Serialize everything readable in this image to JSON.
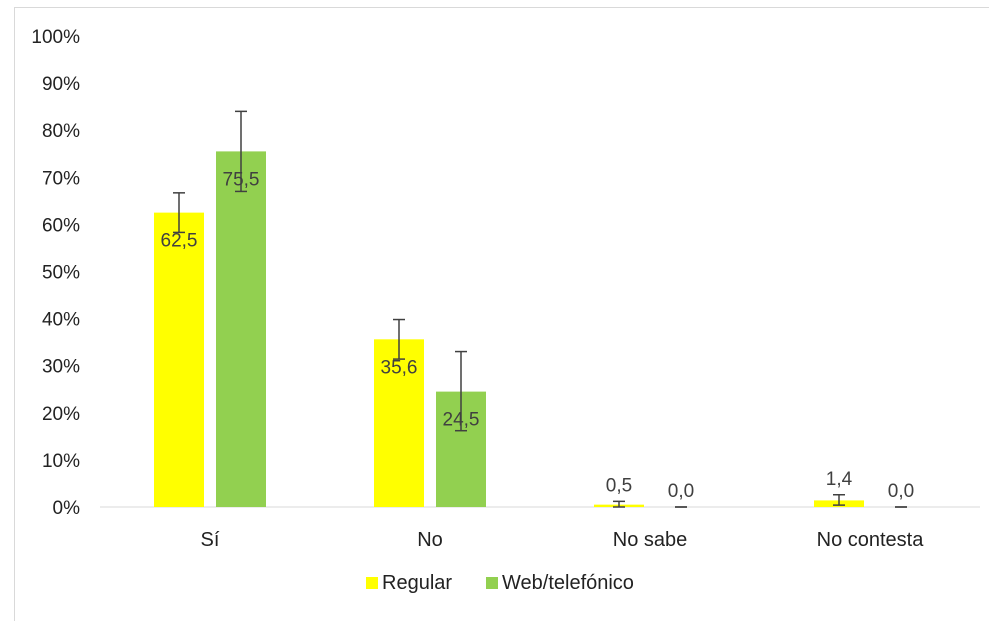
{
  "chart_data": {
    "type": "bar",
    "categories": [
      "Sí",
      "No",
      "No sabe",
      "No contesta"
    ],
    "series": [
      {
        "name": "Regular",
        "values": [
          62.5,
          35.6,
          0.5,
          1.4
        ],
        "data_labels": [
          "62,5",
          "35,6",
          "0,5",
          "1,4"
        ],
        "error_low": [
          58.3,
          31.4,
          0.0,
          0.4
        ],
        "error_high": [
          66.7,
          39.8,
          1.2,
          2.6
        ],
        "color": "#ffff00"
      },
      {
        "name": "Web/telefónico",
        "values": [
          75.5,
          24.5,
          0.0,
          0.0
        ],
        "data_labels": [
          "75,5",
          "24,5",
          "0,0",
          "0,0"
        ],
        "error_low": [
          67.0,
          16.2,
          0.0,
          0.0
        ],
        "error_high": [
          84.0,
          33.0,
          0.0,
          0.0
        ],
        "color": "#92d050"
      }
    ],
    "y_ticks": [
      "0%",
      "10%",
      "20%",
      "30%",
      "40%",
      "50%",
      "60%",
      "70%",
      "80%",
      "90%",
      "100%"
    ],
    "ylim": [
      0,
      100
    ],
    "grid": false,
    "legend_position": "bottom"
  }
}
